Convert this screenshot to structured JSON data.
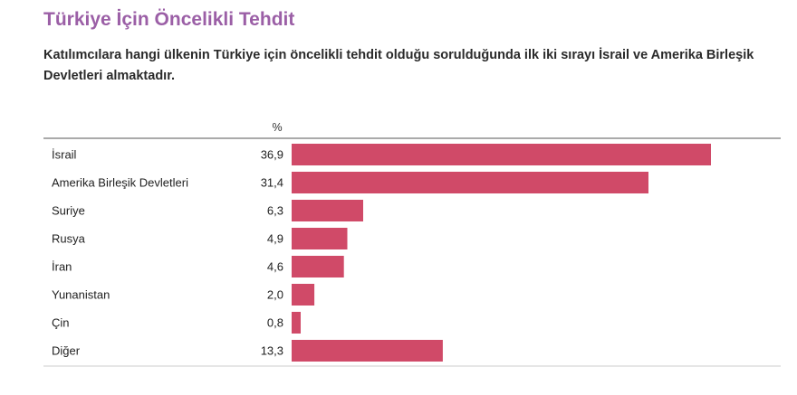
{
  "header": {
    "title": "Türkiye İçin Öncelikli Tehdit",
    "subtitle": "Katılımcılara hangi ülkenin Türkiye için öncelikli tehdit olduğu sorulduğunda ilk iki sırayı İsrail ve Amerika Birleşik Devletleri almaktadır."
  },
  "colors": {
    "title": "#9b5fa6",
    "bar": "#d04a68",
    "separator": "#555555",
    "gridline": "#cccccc"
  },
  "chart_data": {
    "type": "bar",
    "orientation": "horizontal",
    "unit_label": "%",
    "categories": [
      "İsrail",
      "Amerika Birleşik Devletleri",
      "Suriye",
      "Rusya",
      "İran",
      "Yunanistan",
      "Çin",
      "Diğer"
    ],
    "value_labels": [
      "36,9",
      "31,4",
      "6,3",
      "4,9",
      "4,6",
      "2,0",
      "0,8",
      "13,3"
    ],
    "values": [
      36.9,
      31.4,
      6.3,
      4.9,
      4.6,
      2.0,
      0.8,
      13.3
    ],
    "xlim": [
      0,
      36.9
    ],
    "grid": false,
    "legend": "none"
  }
}
